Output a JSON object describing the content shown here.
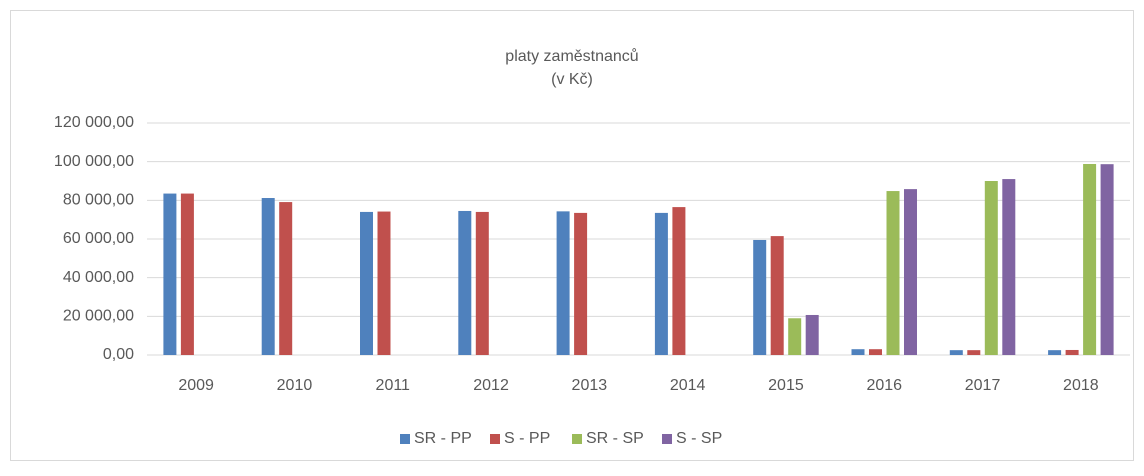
{
  "chart_data": {
    "type": "bar",
    "title": "platy zaměstnanců",
    "subtitle": "(v Kč)",
    "categories": [
      "2009",
      "2010",
      "2011",
      "2012",
      "2013",
      "2014",
      "2015",
      "2016",
      "2017",
      "2018"
    ],
    "series": [
      {
        "name": "SR - PP",
        "color": "#4f81bd",
        "values": [
          83500,
          81200,
          74000,
          74500,
          74300,
          73500,
          59500,
          3000,
          2500,
          2500
        ]
      },
      {
        "name": "S - PP",
        "color": "#c0504d",
        "values": [
          83500,
          79100,
          74200,
          74000,
          73500,
          76500,
          61500,
          3000,
          2500,
          2600
        ]
      },
      {
        "name": "SR - SP",
        "color": "#9bbb59",
        "values": [
          null,
          null,
          null,
          null,
          null,
          null,
          19000,
          84800,
          90000,
          98800
        ]
      },
      {
        "name": "S - SP",
        "color": "#8064a2",
        "values": [
          null,
          null,
          null,
          null,
          null,
          null,
          20700,
          85800,
          91000,
          98700
        ]
      }
    ],
    "ylim": [
      0,
      120000
    ],
    "yticks": [
      {
        "value": 0,
        "label": "0,00"
      },
      {
        "value": 20000,
        "label": "20 000,00"
      },
      {
        "value": 40000,
        "label": "40 000,00"
      },
      {
        "value": 60000,
        "label": "60 000,00"
      },
      {
        "value": 80000,
        "label": "80 000,00"
      },
      {
        "value": 100000,
        "label": "100 000,00"
      },
      {
        "value": 120000,
        "label": "120 000,00"
      }
    ],
    "grid": true,
    "legend": "bottom"
  }
}
